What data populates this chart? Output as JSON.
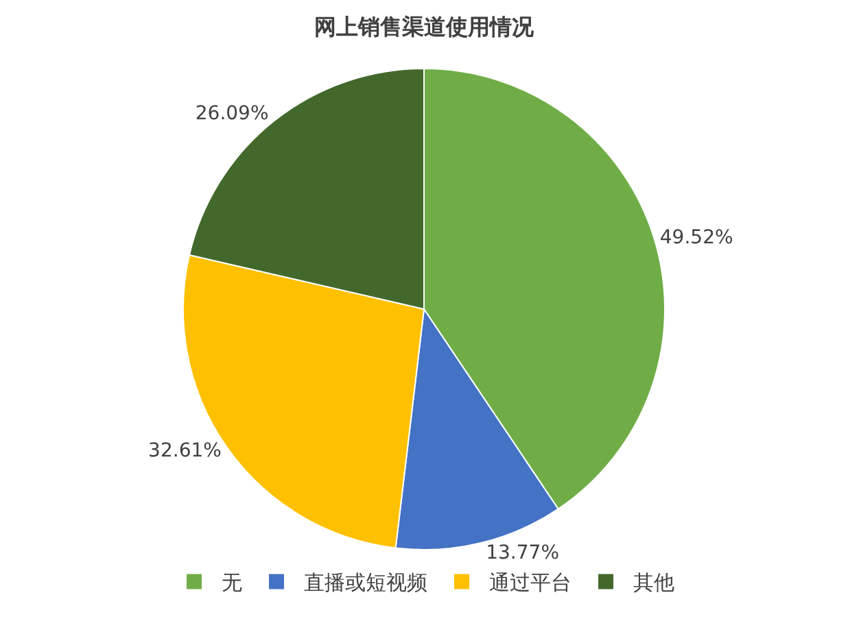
{
  "chart_data": {
    "type": "pie",
    "title": "网上销售渠道使用情况",
    "categories": [
      "无",
      "直播或短视频",
      "通过平台",
      "其他"
    ],
    "values": [
      49.52,
      13.77,
      32.61,
      26.09
    ],
    "value_labels": [
      "49.52%",
      "13.77%",
      "32.61%",
      "26.09%"
    ],
    "colors": [
      "#70ad47",
      "#4472c4",
      "#ffc000",
      "#43682b"
    ],
    "legend": "bottom"
  }
}
